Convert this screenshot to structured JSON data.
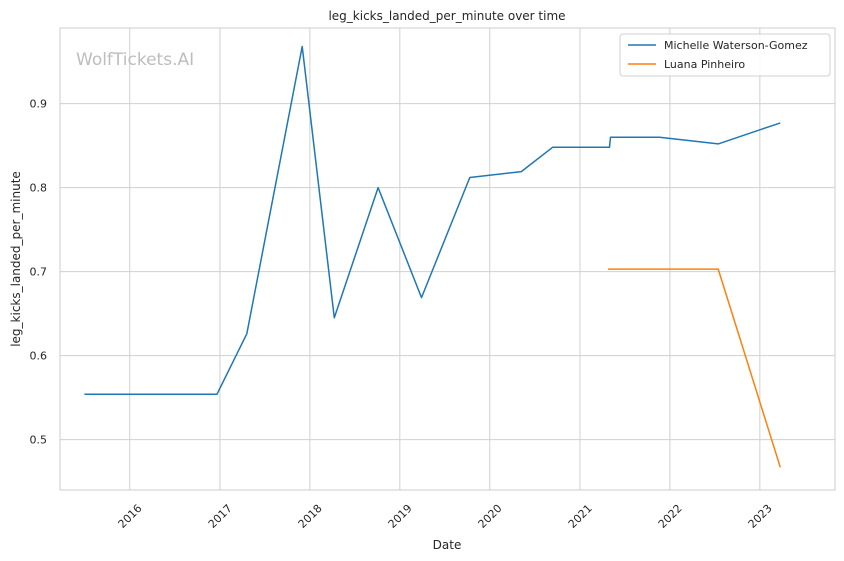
{
  "chart_data": {
    "type": "line",
    "title": "leg_kicks_landed_per_minute over time",
    "xlabel": "Date",
    "ylabel": "leg_kicks_landed_per_minute",
    "watermark": "WolfTickets.AI",
    "x_ticks": [
      "2016",
      "2017",
      "2018",
      "2019",
      "2020",
      "2021",
      "2022",
      "2023"
    ],
    "y_ticks": [
      "0.5",
      "0.6",
      "0.7",
      "0.8",
      "0.9"
    ],
    "xlim": [
      "2015-03-24",
      "2023-11-02"
    ],
    "ylim": [
      0.44,
      0.99
    ],
    "grid": true,
    "legend_position": "top-right",
    "series": [
      {
        "name": "Michelle Waterson-Gomez",
        "color": "#1f77b4",
        "points": [
          [
            "2015-07-01",
            0.554
          ],
          [
            "2016-12-20",
            0.554
          ],
          [
            "2017-04-20",
            0.626
          ],
          [
            "2017-12-01",
            0.968
          ],
          [
            "2018-04-10",
            0.645
          ],
          [
            "2018-10-05",
            0.8
          ],
          [
            "2019-03-30",
            0.669
          ],
          [
            "2019-10-12",
            0.812
          ],
          [
            "2020-05-08",
            0.819
          ],
          [
            "2020-09-12",
            0.848
          ],
          [
            "2021-05-01",
            0.848
          ],
          [
            "2021-05-05",
            0.86
          ],
          [
            "2021-11-20",
            0.86
          ],
          [
            "2022-07-16",
            0.852
          ],
          [
            "2023-03-25",
            0.877
          ]
        ]
      },
      {
        "name": "Luana Pinheiro",
        "color": "#ff7f0e",
        "points": [
          [
            "2021-04-25",
            0.703
          ],
          [
            "2022-07-16",
            0.703
          ],
          [
            "2023-03-25",
            0.467
          ]
        ]
      }
    ]
  }
}
